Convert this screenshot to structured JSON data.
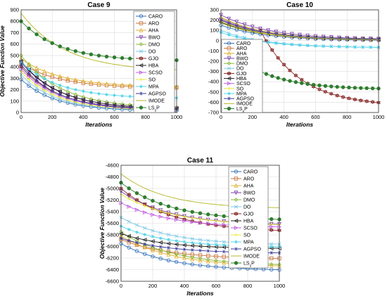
{
  "chart_data": [
    {
      "type": "line",
      "title": "Case 9",
      "xlabel": "Iterations",
      "ylabel": "Objective Function Value",
      "xlim": [
        0,
        1000
      ],
      "ylim": [
        0,
        900
      ],
      "xticks": [
        0,
        200,
        400,
        600,
        800,
        1000
      ],
      "yticks": [
        0,
        100,
        200,
        300,
        400,
        500,
        600,
        700,
        800,
        900
      ],
      "grid": true,
      "legend": "top-right",
      "series": [
        {
          "name": "CARO",
          "color": "#2e6db4",
          "marker": "circle",
          "start": 290,
          "end": 12,
          "rate": 4.5
        },
        {
          "name": "ARO",
          "color": "#c8703a",
          "marker": "square",
          "start": 430,
          "end": 215,
          "rate": 4.0
        },
        {
          "name": "AHA",
          "color": "#e0b030",
          "marker": "triangle",
          "start": 470,
          "end": 222,
          "rate": 3.8
        },
        {
          "name": "BWO",
          "color": "#7b3fa8",
          "marker": "tri-down",
          "start": 440,
          "end": 30,
          "rate": 4.0
        },
        {
          "name": "DMO",
          "color": "#8ab83a",
          "marker": "diamond",
          "start": 500,
          "end": 35,
          "rate": 3.8
        },
        {
          "name": "DO",
          "color": "#7ec8e6",
          "marker": "x",
          "start": 330,
          "end": 15,
          "rate": 4.5
        },
        {
          "name": "GJO",
          "color": "#8b2e2e",
          "marker": "hexagram",
          "start": 400,
          "end": 25,
          "rate": 4.2
        },
        {
          "name": "HBA",
          "color": "#222222",
          "marker": "tri-left",
          "start": 450,
          "end": 28,
          "rate": 4.0
        },
        {
          "name": "SCSO",
          "color": "#c15fe0",
          "marker": "tri-right",
          "start": 380,
          "end": 20,
          "rate": 4.2
        },
        {
          "name": "SO",
          "color": "#e8e830",
          "marker": "plus",
          "start": 360,
          "end": 18,
          "rate": 4.4
        },
        {
          "name": "MPA",
          "color": "#4fd3e8",
          "marker": "star",
          "start": 440,
          "end": 122,
          "rate": 4.0
        },
        {
          "name": "AGPSO",
          "color": "#3a3a9a",
          "marker": "asterisk",
          "start": 420,
          "end": 22,
          "rate": 4.3
        },
        {
          "name": "IMODE",
          "color": "#b5b520",
          "marker": "none",
          "start": 870,
          "end": 360,
          "rate": 3.5
        },
        {
          "name": "LSsP",
          "color": "#2f7d2f",
          "marker": "circle-filled",
          "start": 800,
          "end": 452,
          "rate": 4.0
        }
      ]
    },
    {
      "type": "line",
      "title": "Case 10",
      "xlabel": "Iterations",
      "ylabel": "",
      "xlim": [
        0,
        1000
      ],
      "ylim": [
        -700,
        300
      ],
      "xticks": [
        0,
        200,
        400,
        600,
        800,
        1000
      ],
      "yticks": [
        -700,
        -600,
        -500,
        -400,
        -300,
        -200,
        -100,
        0,
        100,
        200,
        300
      ],
      "grid": true,
      "legend": "left-center",
      "series": [
        {
          "name": "CARO",
          "color": "#2e6db4",
          "marker": "circle",
          "start": 150,
          "end": 0,
          "rate": 3.5
        },
        {
          "name": "ARO",
          "color": "#c8703a",
          "marker": "square",
          "start": 200,
          "end": 5,
          "rate": 3.5
        },
        {
          "name": "AHA",
          "color": "#e0b030",
          "marker": "triangle",
          "start": 230,
          "end": 5,
          "rate": 3.5
        },
        {
          "name": "BWO",
          "color": "#7b3fa8",
          "marker": "tri-down",
          "start": 250,
          "end": 8,
          "rate": 3.2
        },
        {
          "name": "DMO",
          "color": "#8ab83a",
          "marker": "diamond",
          "start": 220,
          "end": 5,
          "rate": 3.5
        },
        {
          "name": "DO",
          "color": "#7ec8e6",
          "marker": "x",
          "start": 100,
          "end": -70,
          "rate": 3.5
        },
        {
          "name": "GJO",
          "color": "#8b2e2e",
          "marker": "hexagram",
          "start": 100,
          "end": -640,
          "rate": 3.0,
          "start_x": 250
        },
        {
          "name": "HBA",
          "color": "#222222",
          "marker": "tri-left",
          "start": 180,
          "end": 5,
          "rate": 3.5
        },
        {
          "name": "SCSO",
          "color": "#c15fe0",
          "marker": "tri-right",
          "start": 210,
          "end": 5,
          "rate": 3.5
        },
        {
          "name": "SO",
          "color": "#e8e830",
          "marker": "plus",
          "start": 190,
          "end": 5,
          "rate": 3.5
        },
        {
          "name": "MPA",
          "color": "#4fd3e8",
          "marker": "star",
          "start": 80,
          "end": -70,
          "rate": 3.5
        },
        {
          "name": "AGPSO",
          "color": "#3a3a9a",
          "marker": "asterisk",
          "start": 200,
          "end": 8,
          "rate": 3.5
        },
        {
          "name": "IMODE",
          "color": "#b5b520",
          "marker": "none",
          "start": 170,
          "end": 5,
          "rate": 3.5
        },
        {
          "name": "LSsP",
          "color": "#2f7d2f",
          "marker": "circle-filled",
          "start": -300,
          "end": -475,
          "rate": 3.0,
          "start_x": 250
        }
      ]
    },
    {
      "type": "line",
      "title": "Case 11",
      "xlabel": "Iterations",
      "ylabel": "Objective Function Value",
      "xlim": [
        0,
        1000
      ],
      "ylim": [
        -6600,
        -4600
      ],
      "xticks": [
        0,
        200,
        400,
        600,
        800,
        1000
      ],
      "yticks": [
        -6600,
        -6400,
        -6200,
        -6000,
        -5800,
        -5600,
        -5400,
        -5200,
        -5000,
        -4800,
        -4600
      ],
      "grid": true,
      "legend": "top-right",
      "series": [
        {
          "name": "CARO",
          "color": "#2e6db4",
          "marker": "circle",
          "start": -5950,
          "end": -6420,
          "rate": 3.2
        },
        {
          "name": "ARO",
          "color": "#c8703a",
          "marker": "square",
          "start": -5880,
          "end": -6220,
          "rate": 3.2
        },
        {
          "name": "AHA",
          "color": "#e0b030",
          "marker": "triangle",
          "start": -5820,
          "end": -6360,
          "rate": 3.0
        },
        {
          "name": "BWO",
          "color": "#7b3fa8",
          "marker": "tri-down",
          "start": -5050,
          "end": -5640,
          "rate": 3.2
        },
        {
          "name": "DMO",
          "color": "#8ab83a",
          "marker": "diamond",
          "start": -5750,
          "end": -6340,
          "rate": 3.0
        },
        {
          "name": "DO",
          "color": "#7ec8e6",
          "marker": "x",
          "start": -5500,
          "end": -5980,
          "rate": 3.2
        },
        {
          "name": "GJO",
          "color": "#8b2e2e",
          "marker": "hexagram",
          "start": -5000,
          "end": -5760,
          "rate": 3.0
        },
        {
          "name": "HBA",
          "color": "#222222",
          "marker": "tri-left",
          "start": -5780,
          "end": -6040,
          "rate": 3.5
        },
        {
          "name": "SCSO",
          "color": "#c15fe0",
          "marker": "tri-right",
          "start": -5250,
          "end": -5680,
          "rate": 3.2
        },
        {
          "name": "SO",
          "color": "#e8e830",
          "marker": "plus",
          "start": -5100,
          "end": -5650,
          "rate": 3.0
        },
        {
          "name": "MPA",
          "color": "#4fd3e8",
          "marker": "star",
          "start": -5650,
          "end": -6020,
          "rate": 3.3
        },
        {
          "name": "AGPSO",
          "color": "#3a3a9a",
          "marker": "asterisk",
          "start": -5860,
          "end": -6120,
          "rate": 3.3
        },
        {
          "name": "IMODE",
          "color": "#b5b520",
          "marker": "none",
          "start": -4750,
          "end": -5350,
          "rate": 3.5
        },
        {
          "name": "LSsP",
          "color": "#2f7d2f",
          "marker": "circle-filled",
          "start": -4900,
          "end": -5560,
          "rate": 3.2
        }
      ]
    }
  ]
}
